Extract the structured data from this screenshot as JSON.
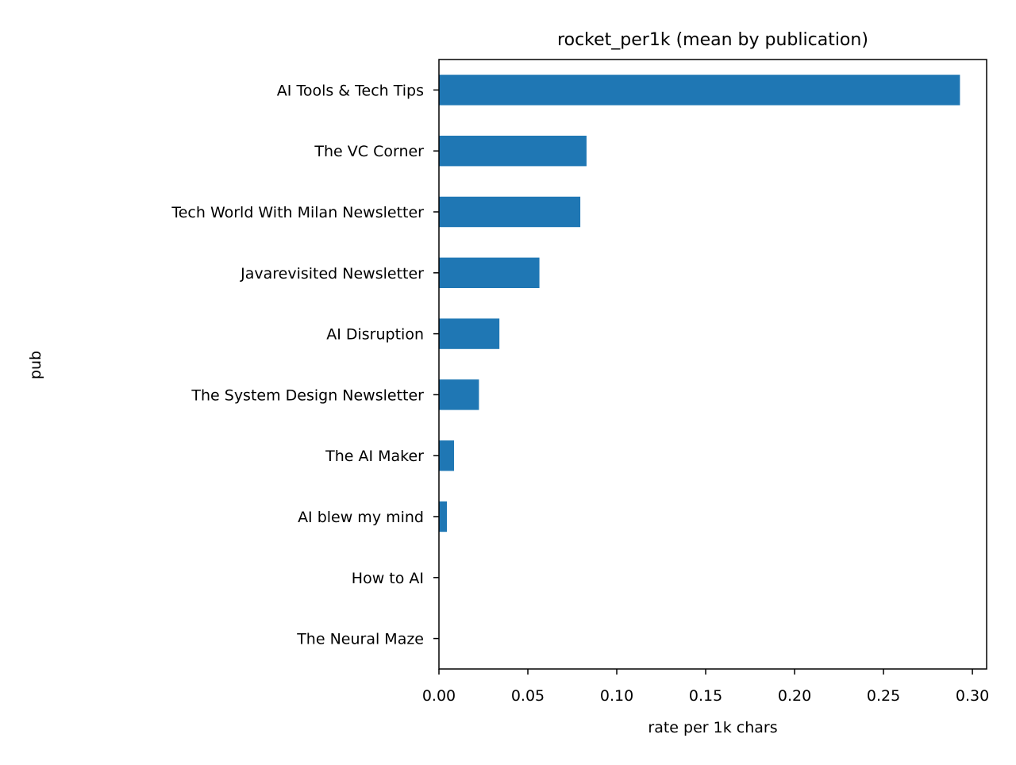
{
  "chart_data": {
    "type": "bar",
    "orientation": "horizontal",
    "title": "rocket_per1k (mean by publication)",
    "xlabel": "rate per 1k chars",
    "ylabel": "pub",
    "categories": [
      "AI Tools & Tech Tips",
      "The VC Corner",
      "Tech World With Milan Newsletter",
      "Javarevisited Newsletter",
      "AI Disruption",
      "The System Design Newsletter",
      "The AI Maker",
      "AI blew my mind",
      "How to AI",
      "The Neural Maze"
    ],
    "values": [
      0.293,
      0.083,
      0.0795,
      0.0565,
      0.034,
      0.0225,
      0.0085,
      0.0045,
      0.0,
      0.0
    ],
    "xlim": [
      0,
      0.308
    ],
    "xticks": [
      "0.00",
      "0.05",
      "0.10",
      "0.15",
      "0.20",
      "0.25",
      "0.30"
    ],
    "grid": false,
    "legend": "none",
    "bar_color": "#1f77b4"
  }
}
